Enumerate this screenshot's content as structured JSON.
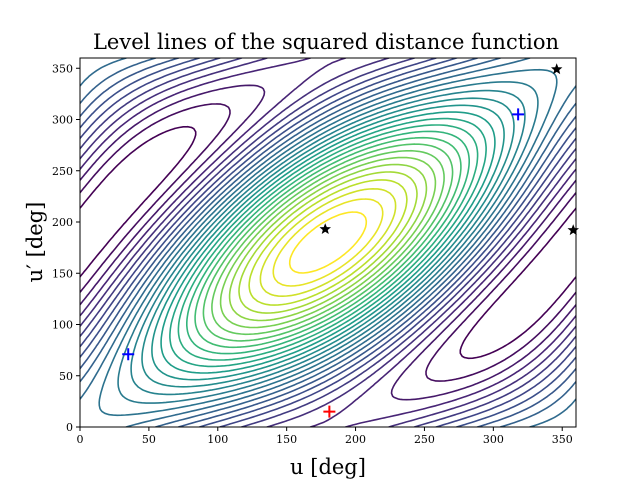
{
  "chart_data": {
    "type": "contour",
    "title": "Level lines of the squared distance function",
    "xlabel": "u [deg]",
    "ylabel": "u′ [deg]",
    "xlim": [
      0,
      360
    ],
    "ylim": [
      0,
      360
    ],
    "xticks": [
      0,
      50,
      100,
      150,
      200,
      250,
      300,
      350
    ],
    "yticks": [
      0,
      50,
      100,
      150,
      200,
      250,
      300,
      350
    ],
    "colormap": "viridis",
    "num_levels": 30,
    "markers": [
      {
        "kind": "saddle",
        "symbol": "star",
        "color": "#000000",
        "x": 178,
        "y": 193
      },
      {
        "kind": "saddle",
        "symbol": "star",
        "color": "#000000",
        "x": 346,
        "y": 349
      },
      {
        "kind": "saddle",
        "symbol": "star",
        "color": "#000000",
        "x": 358,
        "y": 192
      },
      {
        "kind": "minimum",
        "symbol": "plus",
        "color": "#0000ff",
        "x": 35,
        "y": 71
      },
      {
        "kind": "minimum",
        "symbol": "plus",
        "color": "#0000ff",
        "x": 318,
        "y": 305
      },
      {
        "kind": "maximum",
        "symbol": "plus",
        "color": "#ff0000",
        "x": 181,
        "y": 15
      }
    ]
  }
}
